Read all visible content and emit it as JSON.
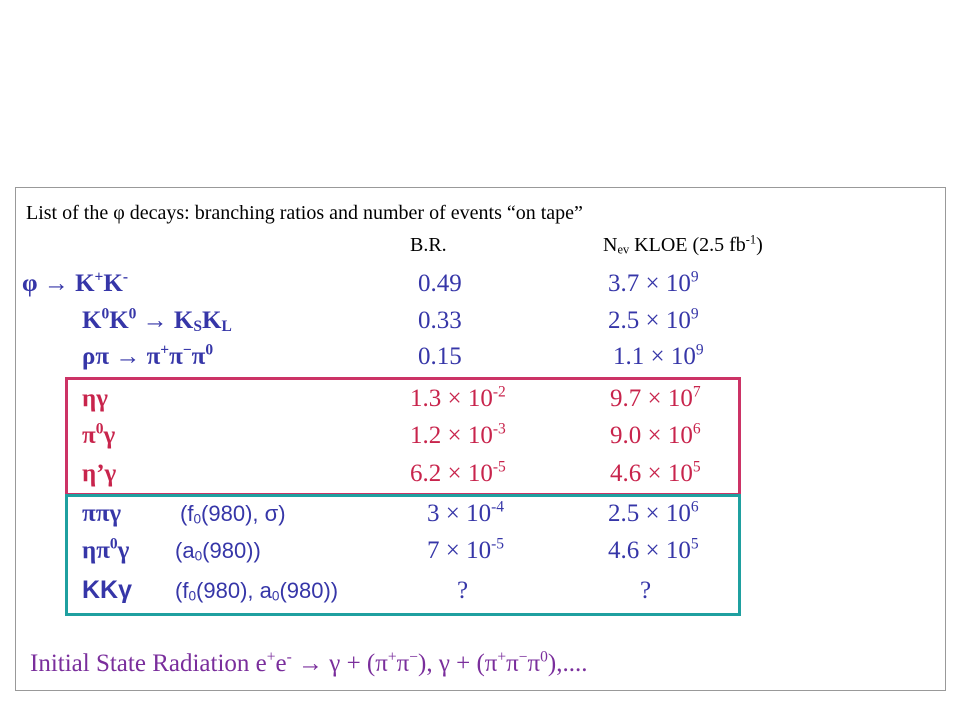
{
  "header": {
    "intro": "List of the φ decays: branching ratios and number of events “on tape”",
    "col_br": "B.R.",
    "col_nev": [
      "N",
      "ev",
      " KLOE (2.5 fb",
      "-1",
      ")"
    ]
  },
  "rows": [
    {
      "decay": [
        "φ → K",
        "+",
        "K",
        "-"
      ],
      "br": [
        "0.49"
      ],
      "nev": [
        "3.7 × 10",
        "9"
      ]
    },
    {
      "decay": [
        "K",
        "0",
        "K",
        "0",
        " → K",
        "S",
        "K",
        "L"
      ],
      "br": [
        "0.33"
      ],
      "nev": [
        "2.5 × 10",
        "9"
      ]
    },
    {
      "decay": [
        "ρπ → π",
        "+",
        "π",
        "−",
        "π",
        "0"
      ],
      "br": [
        "0.15"
      ],
      "nev": [
        "1.1 × 10",
        "9"
      ]
    },
    {
      "decay": [
        "ηγ"
      ],
      "br": [
        "1.3 × 10",
        "-2"
      ],
      "nev": [
        "9.7 × 10",
        "7"
      ]
    },
    {
      "decay": [
        "π",
        "0",
        "γ"
      ],
      "br": [
        "1.2 × 10",
        "-3"
      ],
      "nev": [
        "9.0 × 10",
        "6"
      ]
    },
    {
      "decay": [
        "η’γ"
      ],
      "br": [
        "6.2 × 10",
        "-5"
      ],
      "nev": [
        "4.6 × 10",
        "5"
      ]
    },
    {
      "decay": [
        "ππγ"
      ],
      "resonance": [
        "(f",
        "0",
        "(980), σ)"
      ],
      "br": [
        "3 × 10",
        "-4"
      ],
      "nev": [
        "2.5 × 10",
        "6"
      ]
    },
    {
      "decay": [
        "ηπ",
        "0",
        "γ"
      ],
      "resonance": [
        "(a",
        "0",
        "(980))"
      ],
      "br": [
        "7 × 10",
        "-5"
      ],
      "nev": [
        "4.6 × 10",
        "5"
      ]
    },
    {
      "decay": [
        "KKγ"
      ],
      "resonance": [
        "(f",
        "0",
        "(980), a",
        "0",
        "(980))"
      ],
      "br": [
        "?"
      ],
      "nev": [
        "?"
      ]
    }
  ],
  "footer": [
    "Initial State Radiation e",
    "+",
    "e",
    "-",
    " → γ + (π",
    "+",
    "π",
    "−",
    "), γ + (π",
    "+",
    "π",
    "−",
    "π",
    "0",
    "),...."
  ]
}
